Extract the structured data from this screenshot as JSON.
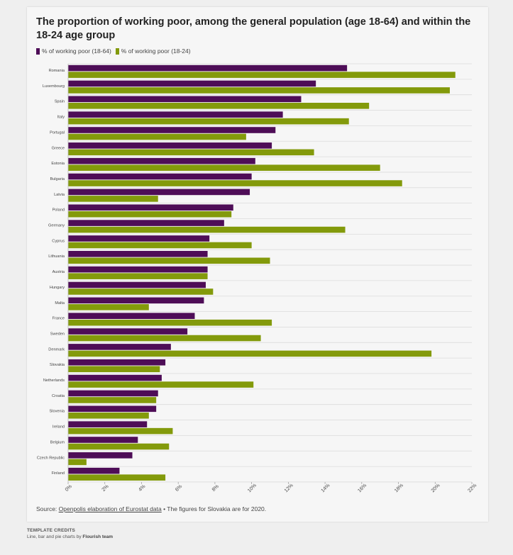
{
  "chart_data": {
    "type": "bar",
    "orientation": "horizontal",
    "title": "The proportion of working poor, among the general population (age 18-64) and within the 18-24 age group",
    "categories": [
      "Romania",
      "Luxembourg",
      "Spain",
      "Italy",
      "Portugal",
      "Greece",
      "Estonia",
      "Bulgaria",
      "Latvia",
      "Poland",
      "Germany",
      "Cyprus",
      "Lithuania",
      "Austria",
      "Hungary",
      "Malta",
      "France",
      "Sweden",
      "Denmark",
      "Slovakia",
      "Netherlands",
      "Croatia",
      "Slovenia",
      "Ireland",
      "Belgium",
      "Czech Republic",
      "Finland"
    ],
    "series": [
      {
        "name": "% of working poor (18-64)",
        "color": "#4e0d57",
        "values": [
          15.2,
          13.5,
          12.7,
          11.7,
          11.3,
          11.1,
          10.2,
          10.0,
          9.9,
          9.0,
          8.5,
          7.7,
          7.6,
          7.6,
          7.5,
          7.4,
          6.9,
          6.5,
          5.6,
          5.3,
          5.1,
          4.9,
          4.8,
          4.3,
          3.8,
          3.5,
          2.8
        ]
      },
      {
        "name": "% of working poor (18-24)",
        "color": "#839a0b",
        "values": [
          21.1,
          20.8,
          16.4,
          15.3,
          9.7,
          13.4,
          17.0,
          18.2,
          4.9,
          8.9,
          15.1,
          10.0,
          11.0,
          7.6,
          7.9,
          4.4,
          11.1,
          10.5,
          19.8,
          5.0,
          10.1,
          4.8,
          4.4,
          5.7,
          5.5,
          1.0,
          5.3
        ]
      }
    ],
    "xlim": [
      0,
      22
    ],
    "xticks": [
      "0%",
      "2%",
      "4%",
      "6%",
      "8%",
      "10%",
      "12%",
      "14%",
      "16%",
      "18%",
      "20%",
      "22%"
    ],
    "xlabel": "",
    "ylabel": "",
    "grid": true,
    "legend": "top-left"
  },
  "source": {
    "prefix": "Source: ",
    "link_text": "Openpolis elaboration of Eurostat data",
    "note": " • The figures for Slovakia are for 2020."
  },
  "credits": {
    "heading": "TEMPLATE CREDITS",
    "line_prefix": "Line, bar and pie charts by ",
    "line_author": "Flourish team"
  }
}
